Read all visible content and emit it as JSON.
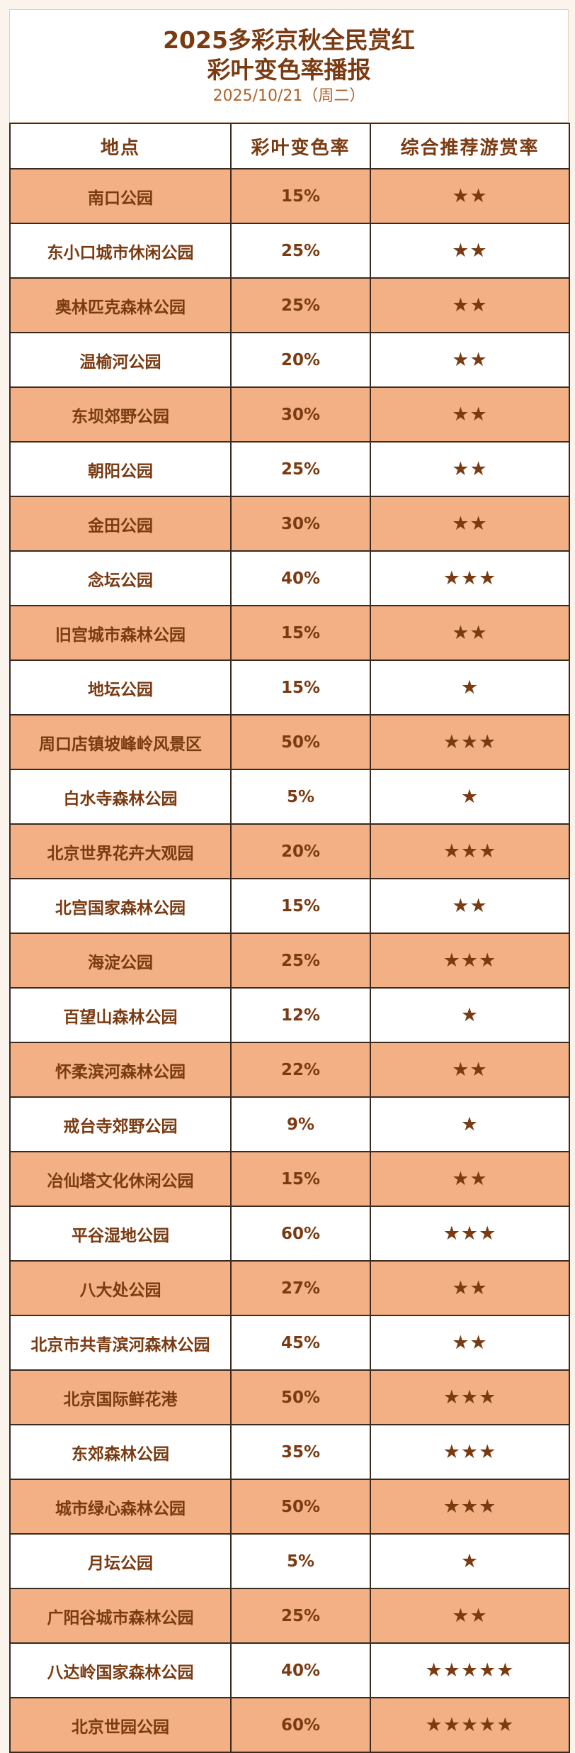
{
  "header": {
    "title_line1": "2025多彩京秋全民赏红",
    "title_line2": "彩叶变色率播报",
    "date": "2025/10/21（周二）"
  },
  "table": {
    "columns": [
      "地点",
      "彩叶变色率",
      "综合推荐游赏率"
    ],
    "rows": [
      [
        "南口公园",
        "15%",
        "★★"
      ],
      [
        "东小口城市休闲公园",
        "25%",
        "★★"
      ],
      [
        "奥林匹克森林公园",
        "25%",
        "★★"
      ],
      [
        "温榆河公园",
        "20%",
        "★★"
      ],
      [
        "东坝郊野公园",
        "30%",
        "★★"
      ],
      [
        "朝阳公园",
        "25%",
        "★★"
      ],
      [
        "金田公园",
        "30%",
        "★★"
      ],
      [
        "念坛公园",
        "40%",
        "★★★"
      ],
      [
        "旧宫城市森林公园",
        "15%",
        "★★"
      ],
      [
        "地坛公园",
        "15%",
        "★"
      ],
      [
        "周口店镇坡峰岭风景区",
        "50%",
        "★★★"
      ],
      [
        "白水寺森林公园",
        "5%",
        "★"
      ],
      [
        "北京世界花卉大观园",
        "20%",
        "★★★"
      ],
      [
        "北宫国家森林公园",
        "15%",
        "★★"
      ],
      [
        "海淀公园",
        "25%",
        "★★★"
      ],
      [
        "百望山森林公园",
        "12%",
        "★"
      ],
      [
        "怀柔滨河森林公园",
        "22%",
        "★★"
      ],
      [
        "戒台寺郊野公园",
        "9%",
        "★"
      ],
      [
        "冶仙塔文化休闲公园",
        "15%",
        "★★"
      ],
      [
        "平谷湿地公园",
        "60%",
        "★★★"
      ],
      [
        "八大处公园",
        "27%",
        "★★"
      ],
      [
        "北京市共青滨河森林公园",
        "45%",
        "★★"
      ],
      [
        "北京国际鲜花港",
        "50%",
        "★★★"
      ],
      [
        "东郊森林公园",
        "35%",
        "★★★"
      ],
      [
        "城市绿心森林公园",
        "50%",
        "★★★"
      ],
      [
        "月坛公园",
        "5%",
        "★"
      ],
      [
        "广阳谷城市森林公园",
        "25%",
        "★★"
      ],
      [
        "八达岭国家森林公园",
        "40%",
        "★★★★★"
      ],
      [
        "北京世园公园",
        "60%",
        "★★★★★"
      ]
    ]
  }
}
